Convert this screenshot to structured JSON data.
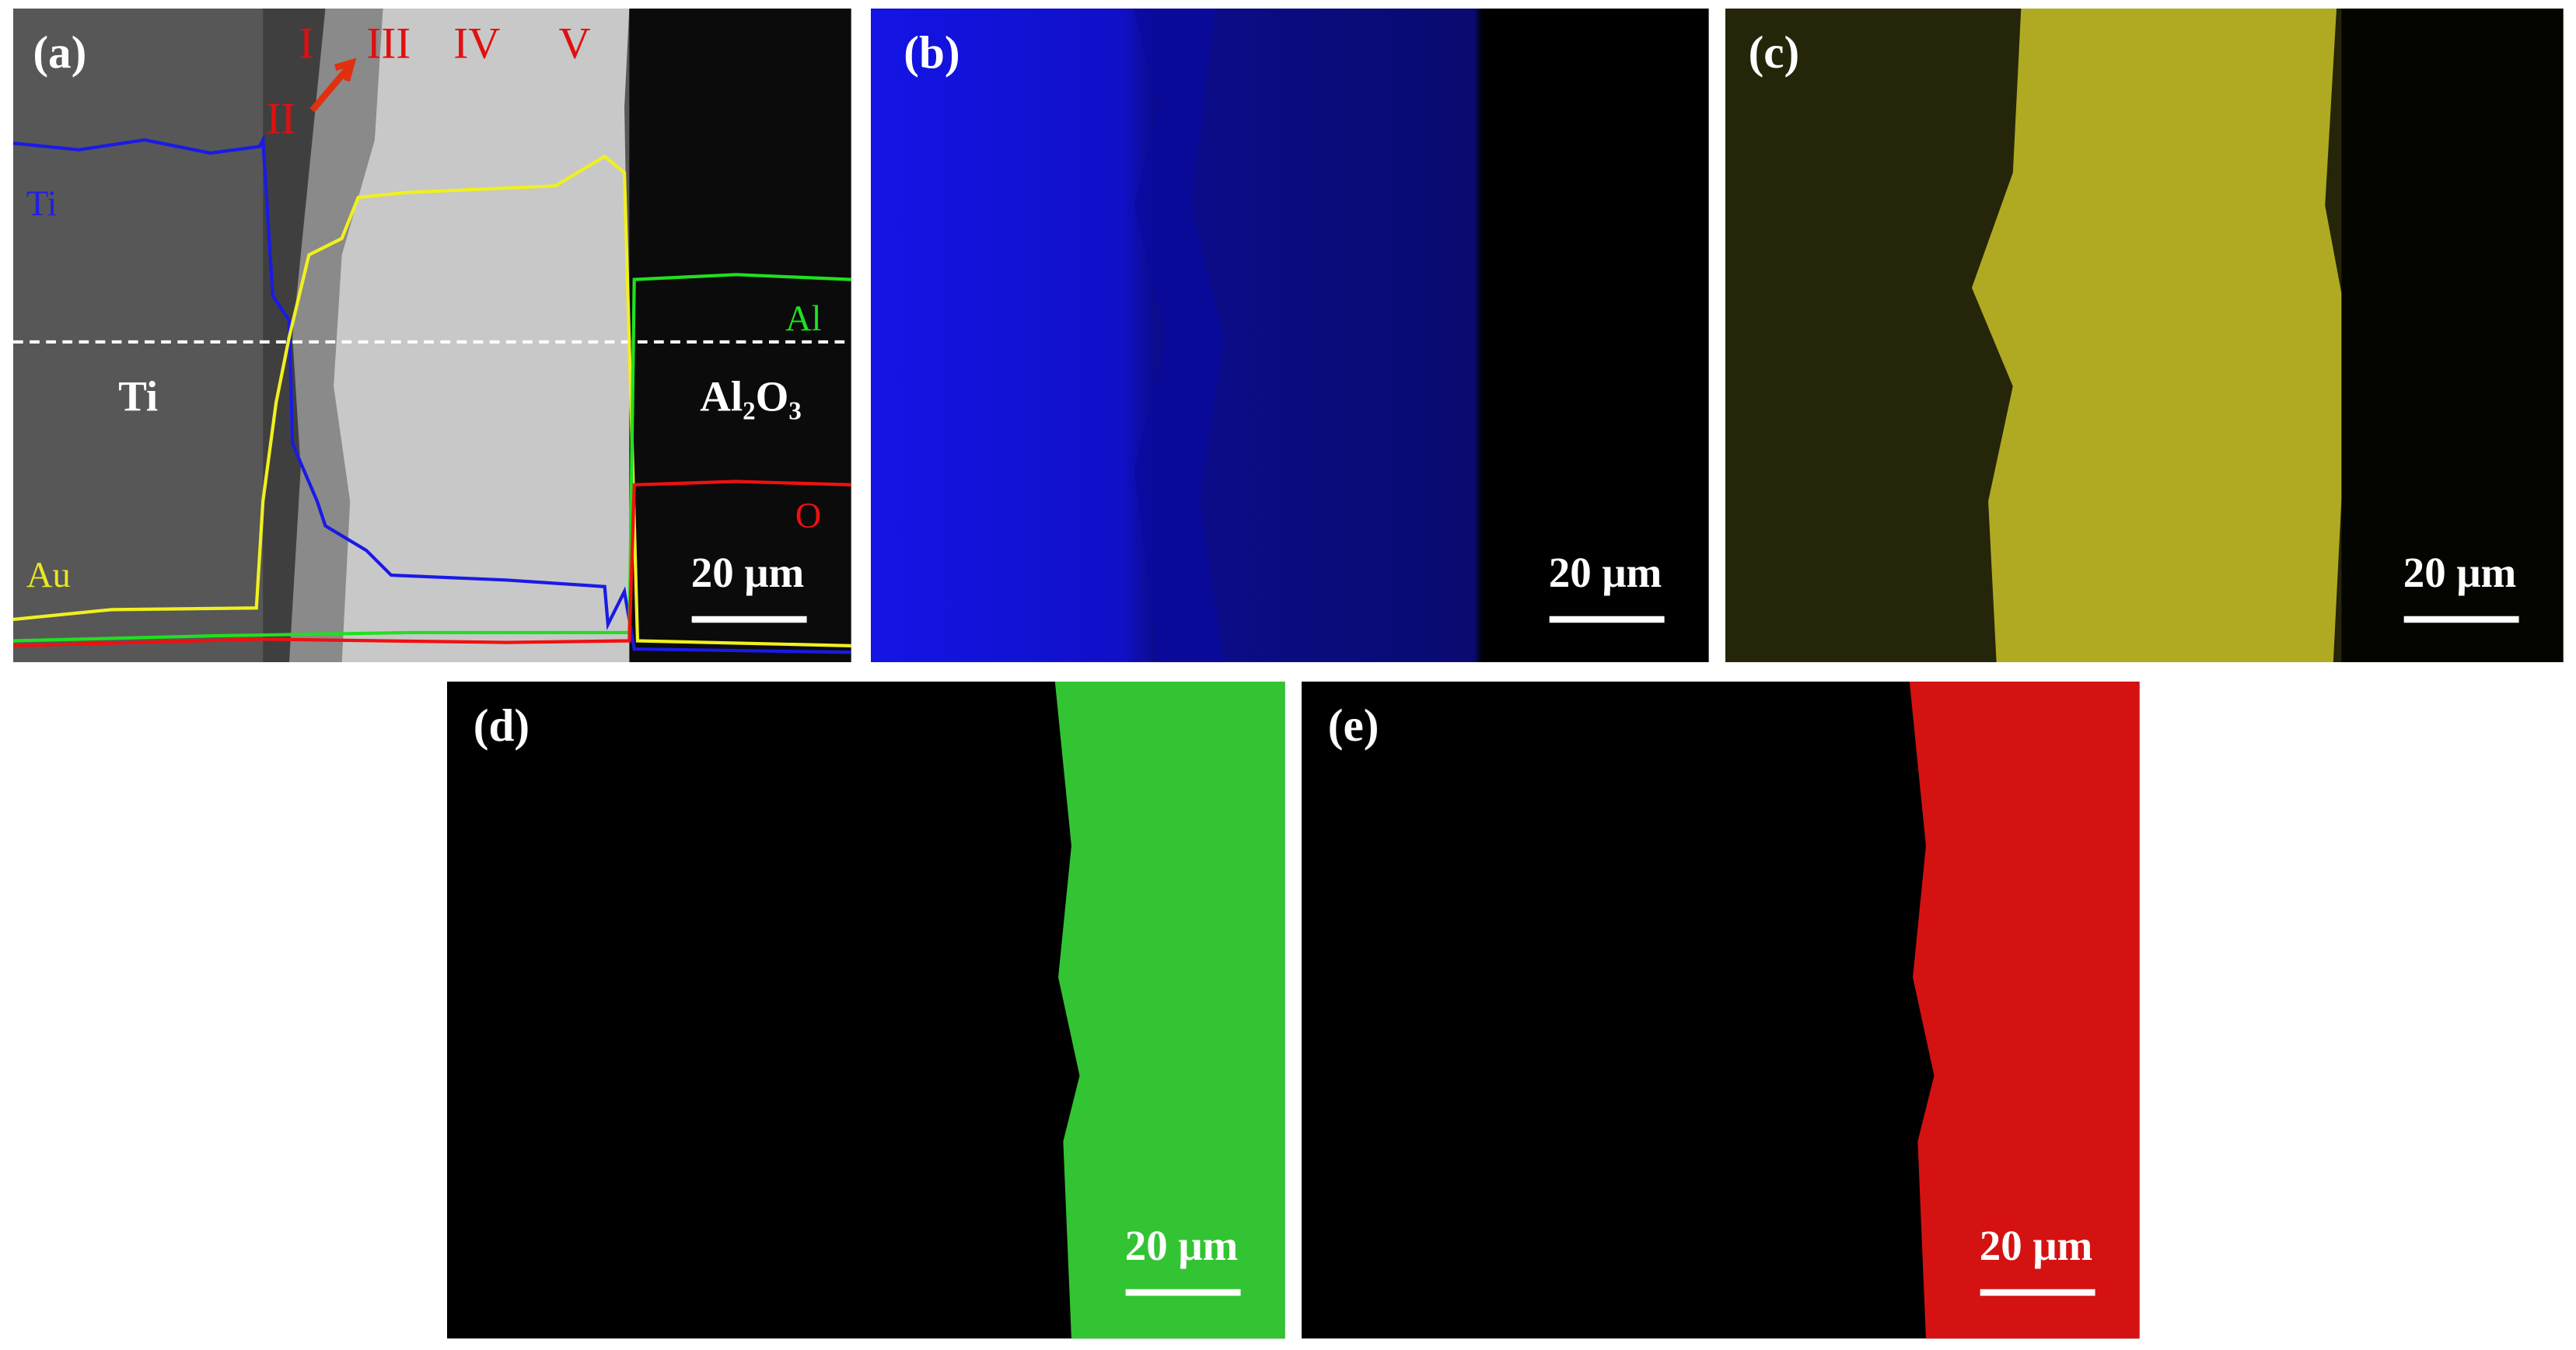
{
  "panels": [
    {
      "label": "(a)",
      "scale_bar": "20 μm",
      "regions": [
        "I",
        "II",
        "III",
        "IV",
        "V"
      ],
      "phases": [
        "Ti",
        "Al₂O₃"
      ],
      "elements": [
        "Ti",
        "Au",
        "Al",
        "O"
      ]
    },
    {
      "label": "(b)",
      "scale_bar": "20 μm"
    },
    {
      "label": "(c)",
      "scale_bar": "20 μm"
    },
    {
      "label": "(d)",
      "scale_bar": "20 μm"
    },
    {
      "label": "(e)",
      "scale_bar": "20 μm"
    }
  ]
}
